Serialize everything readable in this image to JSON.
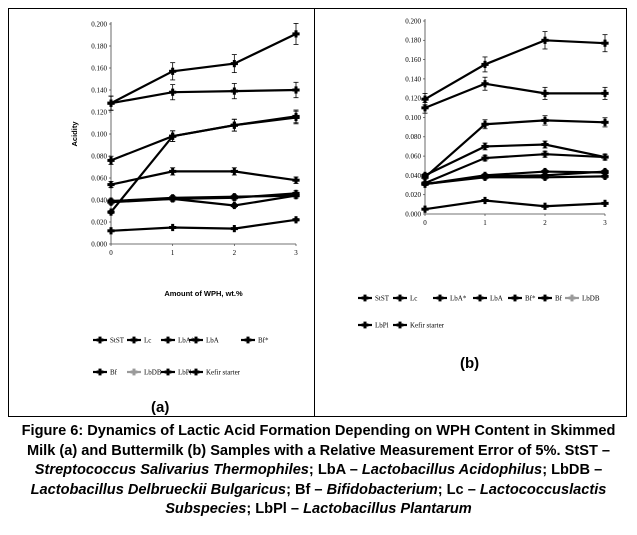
{
  "chart_data": [
    {
      "panel": "a",
      "type": "line",
      "panel_label": "(a)",
      "xlabel": "Amount of WPH, wt.%",
      "ylabel": "Acidity",
      "x": [
        0,
        1,
        2,
        3
      ],
      "xlim": [
        0,
        3
      ],
      "ylim": [
        0,
        0.2
      ],
      "ytick_labels": [
        "0.000",
        "0.020",
        "0.040",
        "0.060",
        "0.080",
        "0.100",
        "0.120",
        "0.140",
        "0.160",
        "0.180",
        "0.200"
      ],
      "legend_placement": "bottom",
      "series": [
        {
          "name": "StST",
          "values": [
            0.076,
            0.098,
            0.108,
            0.116
          ]
        },
        {
          "name": "Lc",
          "values": [
            0.128,
            0.138,
            0.139,
            0.14
          ]
        },
        {
          "name": "LbA*",
          "values": [
            0.128,
            0.157,
            0.164,
            0.191
          ]
        },
        {
          "name": "LbA",
          "values": [
            0.029,
            0.098,
            0.108,
            0.115
          ]
        },
        {
          "name": "Bf*",
          "values": [
            0.054,
            0.066,
            0.066,
            0.058
          ]
        },
        {
          "name": "Bf",
          "values": [
            0.038,
            0.041,
            0.042,
            0.046
          ]
        },
        {
          "name": "LbDB",
          "values": [
            0.039,
            0.042,
            0.043,
            0.044
          ]
        },
        {
          "name": "LbPl",
          "values": [
            0.012,
            0.015,
            0.014,
            0.022
          ]
        },
        {
          "name": "Kefir starter",
          "values": [
            0.039,
            0.041,
            0.035,
            0.044
          ]
        }
      ]
    },
    {
      "panel": "b",
      "type": "line",
      "panel_label": "(b)",
      "x": [
        0,
        1,
        2,
        3
      ],
      "xlim": [
        0,
        3
      ],
      "ylim": [
        0,
        0.2
      ],
      "ytick_labels": [
        "0.000",
        "0.020",
        "0.040",
        "0.060",
        "0.080",
        "0.100",
        "0.120",
        "0.140",
        "0.160",
        "0.180",
        "0.200"
      ],
      "legend_placement": "bottom",
      "series": [
        {
          "name": "StST",
          "values": [
            0.119,
            0.155,
            0.18,
            0.177
          ]
        },
        {
          "name": "Lc",
          "values": [
            0.11,
            0.135,
            0.125,
            0.125
          ]
        },
        {
          "name": "LbA*",
          "values": [
            0.038,
            0.093,
            0.097,
            0.095
          ]
        },
        {
          "name": "LbA",
          "values": [
            0.04,
            0.07,
            0.072,
            0.059
          ]
        },
        {
          "name": "Bf*",
          "values": [
            0.032,
            0.058,
            0.062,
            0.059
          ]
        },
        {
          "name": "Bf",
          "values": [
            0.031,
            0.039,
            0.04,
            0.044
          ]
        },
        {
          "name": "LbDB",
          "values": [
            0.031,
            0.038,
            0.038,
            0.039
          ]
        },
        {
          "name": "LbPl",
          "values": [
            0.005,
            0.014,
            0.008,
            0.011
          ]
        },
        {
          "name": "Kefir starter",
          "values": [
            0.031,
            0.04,
            0.044,
            0.043
          ]
        }
      ]
    }
  ],
  "colors": {
    "line": "#000000",
    "lbdb_marker": "#9a9a9a"
  },
  "caption": {
    "prefix": "Figure 6: Dynamics of Lactic Acid Formation Depending on WPH Content in Skimmed Milk (a) and Buttermilk (b) Samples with a Relative Measurement Error of 5%. StST – ",
    "stst": "Streptococcus Salivarius Thermophiles",
    "sep1": "; LbA – ",
    "lba": "Lactobacillus Acidophilus",
    "sep2": "; LbDB – ",
    "lbdb": "Lactobacillus Delbrueckii Bulgaricus",
    "sep3": "; Bf – ",
    "bf": "Bifidobacterium",
    "sep4": "; Lc – ",
    "lc": "Lactococcuslactis Subspecies",
    "sep5": "; LbPl – ",
    "lbpl": "Lactobacillus Plantarum"
  }
}
